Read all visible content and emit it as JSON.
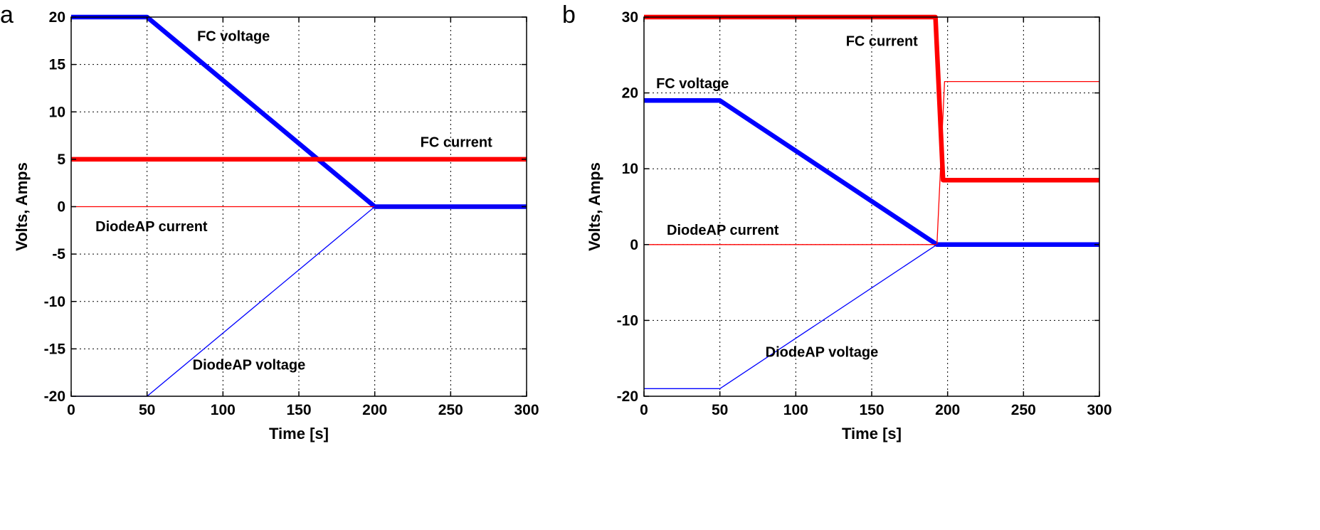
{
  "chart_data": [
    {
      "panel": "a",
      "type": "line",
      "title": "",
      "xlabel": "Time [s]",
      "ylabel": "Volts, Amps",
      "xlim": [
        0,
        300
      ],
      "ylim": [
        -20,
        20
      ],
      "xticks": [
        0,
        50,
        100,
        150,
        200,
        250,
        300
      ],
      "yticks": [
        -20,
        -15,
        -10,
        -5,
        0,
        5,
        10,
        15,
        20
      ],
      "grid": true,
      "series": [
        {
          "name": "FC voltage",
          "color": "#0000ff",
          "weight": "thick",
          "points": [
            [
              0,
              20
            ],
            [
              50,
              20
            ],
            [
              200,
              0
            ],
            [
              300,
              0
            ]
          ]
        },
        {
          "name": "FC current",
          "color": "#ff0000",
          "weight": "thick",
          "points": [
            [
              0,
              5
            ],
            [
              300,
              5
            ]
          ]
        },
        {
          "name": "DiodeAP current",
          "color": "#ff0000",
          "weight": "thin",
          "points": [
            [
              0,
              0
            ],
            [
              300,
              0
            ]
          ]
        },
        {
          "name": "DiodeAP voltage",
          "color": "#0000ff",
          "weight": "thin",
          "points": [
            [
              0,
              -20
            ],
            [
              50,
              -20
            ],
            [
              200,
              0
            ],
            [
              300,
              0
            ]
          ]
        }
      ],
      "annotations": [
        {
          "text": "FC voltage",
          "x": 83,
          "y": 17.5
        },
        {
          "text": "FC current",
          "x": 230,
          "y": 6.3
        },
        {
          "text": "DiodeAP current",
          "x": 16,
          "y": -2.6
        },
        {
          "text": "DiodeAP voltage",
          "x": 80,
          "y": -17.2
        }
      ]
    },
    {
      "panel": "b",
      "type": "line",
      "title": "",
      "xlabel": "Time [s]",
      "ylabel": "Volts, Amps",
      "xlim": [
        0,
        300
      ],
      "ylim": [
        -20,
        30
      ],
      "xticks": [
        0,
        50,
        100,
        150,
        200,
        250,
        300
      ],
      "yticks": [
        -20,
        -10,
        0,
        10,
        20,
        30
      ],
      "grid": true,
      "series": [
        {
          "name": "FC current",
          "color": "#ff0000",
          "weight": "thick",
          "points": [
            [
              0,
              30
            ],
            [
              192,
              30
            ],
            [
              197,
              8.5
            ],
            [
              300,
              8.5
            ]
          ]
        },
        {
          "name": "FC voltage",
          "color": "#0000ff",
          "weight": "thick",
          "points": [
            [
              0,
              19
            ],
            [
              50,
              19
            ],
            [
              193,
              0
            ],
            [
              300,
              0
            ]
          ]
        },
        {
          "name": "DiodeAP current",
          "color": "#ff0000",
          "weight": "thin",
          "points": [
            [
              0,
              0
            ],
            [
              193,
              0
            ],
            [
              198,
              21.5
            ],
            [
              300,
              21.5
            ]
          ]
        },
        {
          "name": "DiodeAP voltage",
          "color": "#0000ff",
          "weight": "thin",
          "points": [
            [
              0,
              -19
            ],
            [
              50,
              -19
            ],
            [
              193,
              0
            ],
            [
              300,
              0
            ]
          ]
        }
      ],
      "annotations": [
        {
          "text": "FC current",
          "x": 133,
          "y": 26.2
        },
        {
          "text": "FC voltage",
          "x": 8,
          "y": 20.6
        },
        {
          "text": "DiodeAP current",
          "x": 15,
          "y": 1.3
        },
        {
          "text": "DiodeAP voltage",
          "x": 80,
          "y": -14.8
        }
      ]
    }
  ]
}
